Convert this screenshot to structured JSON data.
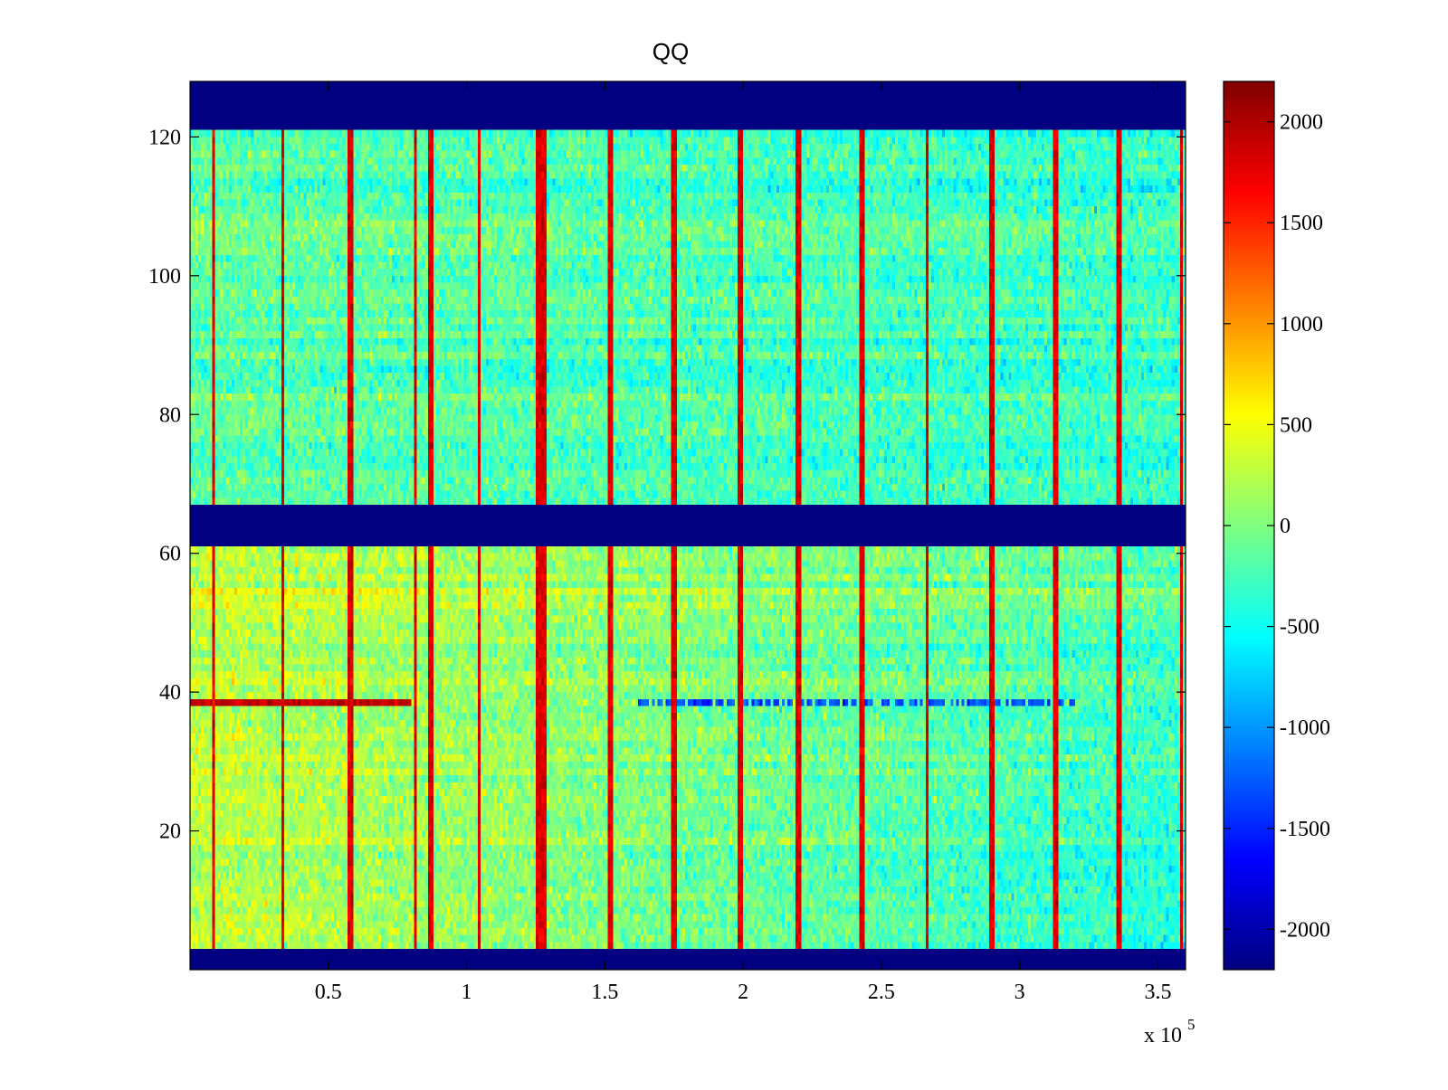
{
  "chart_data": {
    "type": "heatmap",
    "title": "QQ",
    "xlabel": "",
    "ylabel": "",
    "x_multiplier_label": "x 10",
    "x_multiplier_exponent": "5",
    "xlim": [
      0,
      3.6
    ],
    "ylim": [
      0,
      128
    ],
    "x_ticks": [
      {
        "value": 0.5,
        "label": "0.5"
      },
      {
        "value": 1,
        "label": "1"
      },
      {
        "value": 1.5,
        "label": "1.5"
      },
      {
        "value": 2,
        "label": "2"
      },
      {
        "value": 2.5,
        "label": "2.5"
      },
      {
        "value": 3,
        "label": "3"
      },
      {
        "value": 3.5,
        "label": "3.5"
      }
    ],
    "y_ticks": [
      {
        "value": 20,
        "label": "20"
      },
      {
        "value": 40,
        "label": "40"
      },
      {
        "value": 60,
        "label": "60"
      },
      {
        "value": 80,
        "label": "80"
      },
      {
        "value": 100,
        "label": "100"
      },
      {
        "value": 120,
        "label": "120"
      }
    ],
    "colorbar": {
      "colormap": "jet",
      "clim": [
        -2200,
        2200
      ],
      "ticks": [
        {
          "value": 2000,
          "label": "2000"
        },
        {
          "value": 1500,
          "label": "1500"
        },
        {
          "value": 1000,
          "label": "1000"
        },
        {
          "value": 500,
          "label": "500"
        },
        {
          "value": 0,
          "label": "0"
        },
        {
          "value": -500,
          "label": "-500"
        },
        {
          "value": -1000,
          "label": "-1000"
        },
        {
          "value": -1500,
          "label": "-1500"
        },
        {
          "value": -2000,
          "label": "-2000"
        }
      ]
    },
    "masked_bands_y": [
      [
        0,
        3
      ],
      [
        61,
        67
      ],
      [
        121,
        128
      ]
    ],
    "mask_value": -2200,
    "vertical_stripes_x": [
      0.085,
      0.335,
      0.58,
      0.815,
      0.87,
      1.045,
      1.26,
      1.28,
      1.52,
      1.75,
      1.99,
      2.2,
      2.43,
      2.665,
      2.9,
      3.13,
      3.36,
      3.585
    ],
    "stripe_value": 1800,
    "row_38_anomaly": {
      "row": 38,
      "high_x_range": [
        0,
        0.8
      ],
      "high_value": 1900,
      "low_x_range": [
        1.6,
        3.2
      ],
      "low_value": -1300
    },
    "trends": {
      "lower_left_value": 600,
      "lower_right_value": -900,
      "upper_left_value": -250,
      "upper_right_value": -600
    }
  }
}
